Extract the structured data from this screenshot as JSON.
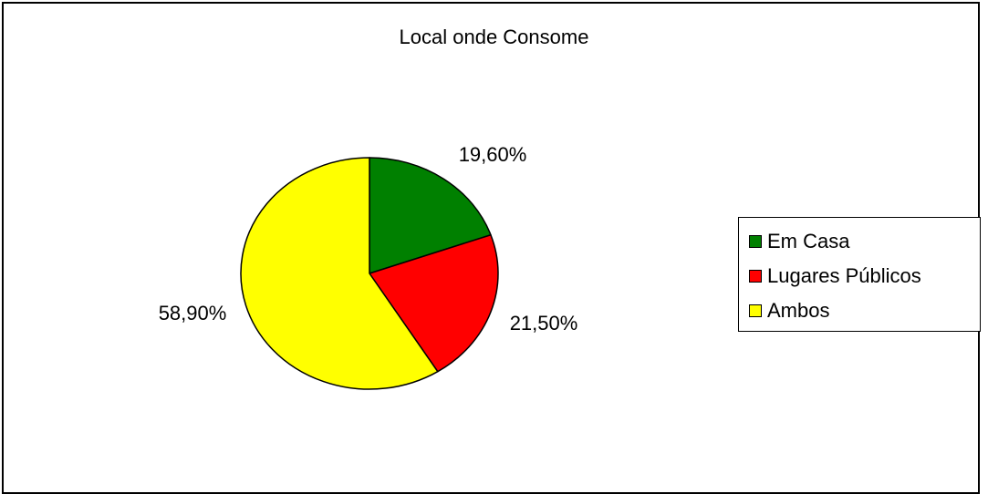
{
  "chart_data": {
    "type": "pie",
    "title": "Local onde Consome",
    "categories": [
      "Em Casa",
      "Lugares Públicos",
      "Ambos"
    ],
    "values": [
      19.6,
      21.5,
      58.9
    ],
    "labels": [
      "19,60%",
      "21,50%",
      "58,90%"
    ],
    "colors": [
      "#008000",
      "#ff0000",
      "#ffff00"
    ],
    "legend_position": "right"
  }
}
